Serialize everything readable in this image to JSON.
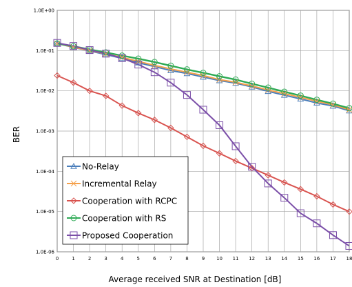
{
  "chart_data": {
    "type": "line",
    "title": "",
    "xlabel": "Average received SNR at Destination [dB]",
    "ylabel": "BER",
    "x": [
      0,
      1,
      2,
      3,
      4,
      5,
      6,
      7,
      8,
      9,
      10,
      11,
      12,
      13,
      14,
      15,
      16,
      17,
      18
    ],
    "xlim": [
      0,
      18
    ],
    "ylim": [
      1e-06,
      1
    ],
    "yscale": "log",
    "grid": true,
    "legend_position": "bottom-left",
    "x_tick_labels": [
      "0",
      "1",
      "2",
      "3",
      "4",
      "5",
      "6",
      "7",
      "8",
      "9",
      "10",
      "11",
      "12",
      "13",
      "14",
      "15",
      "16",
      "17",
      "18"
    ],
    "y_tick_labels": [
      "1.0E+00",
      "1.0E-01",
      "1.0E-02",
      "1.0E-03",
      "1.0E-04",
      "1.0E-05",
      "1.0E-06"
    ],
    "series": [
      {
        "name": "No-Relay",
        "color": "#4a7ebb",
        "marker": "triangle",
        "values": [
          0.15,
          0.12,
          0.098,
          0.08,
          0.064,
          0.05,
          0.04,
          0.032,
          0.027,
          0.022,
          0.018,
          0.0155,
          0.0125,
          0.0097,
          0.0078,
          0.0063,
          0.005,
          0.0042,
          0.0032
        ]
      },
      {
        "name": "Incremental Relay",
        "color": "#f5a04a",
        "marker": "x",
        "values": [
          0.15,
          0.122,
          0.1,
          0.083,
          0.068,
          0.054,
          0.043,
          0.035,
          0.029,
          0.024,
          0.019,
          0.0163,
          0.0132,
          0.0105,
          0.0085,
          0.0069,
          0.0055,
          0.0045,
          0.0034
        ]
      },
      {
        "name": "Cooperation with RCPC",
        "color": "#d9534f",
        "marker": "diamond",
        "values": [
          0.024,
          0.016,
          0.01,
          0.0075,
          0.0043,
          0.0028,
          0.0019,
          0.0012,
          0.00072,
          0.00043,
          0.00028,
          0.00018,
          0.00012,
          8e-05,
          5.3e-05,
          3.6e-05,
          2.4e-05,
          1.5e-05,
          1e-05
        ]
      },
      {
        "name": "Cooperation with RS",
        "color": "#2eaa55",
        "marker": "circle",
        "values": [
          0.15,
          0.128,
          0.107,
          0.09,
          0.075,
          0.063,
          0.052,
          0.042,
          0.034,
          0.028,
          0.023,
          0.019,
          0.015,
          0.012,
          0.0095,
          0.0076,
          0.006,
          0.0048,
          0.0037
        ]
      },
      {
        "name": "Proposed Cooperation",
        "color": "#7b4fa8",
        "marker": "square",
        "values": [
          0.155,
          0.13,
          0.103,
          0.084,
          0.065,
          0.045,
          0.029,
          0.016,
          0.0079,
          0.0034,
          0.0014,
          0.00042,
          0.00013,
          5e-05,
          2.2e-05,
          9.1e-06,
          5.1e-06,
          2.6e-06,
          1.4e-06
        ]
      }
    ]
  }
}
